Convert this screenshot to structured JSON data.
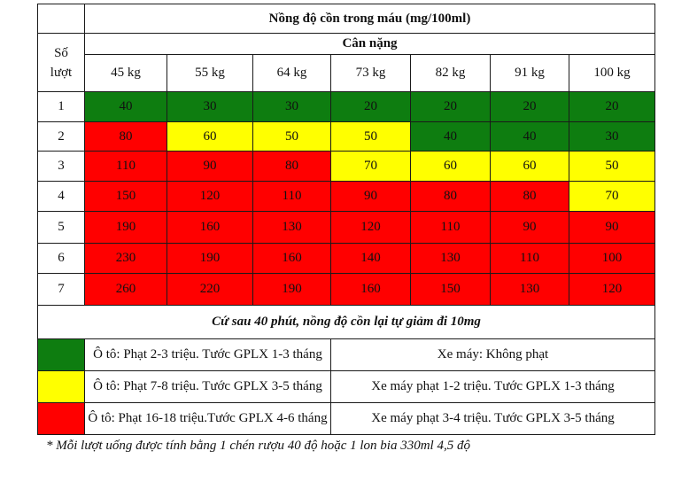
{
  "header": {
    "title": "Nồng độ cồn trong máu (mg/100ml)",
    "rounds_label": "Số lượt",
    "weight_label": "Cân nặng"
  },
  "weights": [
    "45 kg",
    "55 kg",
    "64 kg",
    "73 kg",
    "82 kg",
    "91 kg",
    "100 kg"
  ],
  "rows": [
    {
      "round": "1",
      "values": [
        "40",
        "30",
        "30",
        "20",
        "20",
        "20",
        "20"
      ],
      "levels": [
        "green",
        "green",
        "green",
        "green",
        "green",
        "green",
        "green"
      ]
    },
    {
      "round": "2",
      "values": [
        "80",
        "60",
        "50",
        "50",
        "40",
        "40",
        "30"
      ],
      "levels": [
        "red",
        "yellow",
        "yellow",
        "yellow",
        "green",
        "green",
        "green"
      ]
    },
    {
      "round": "3",
      "values": [
        "110",
        "90",
        "80",
        "70",
        "60",
        "60",
        "50"
      ],
      "levels": [
        "red",
        "red",
        "red",
        "yellow",
        "yellow",
        "yellow",
        "yellow"
      ]
    },
    {
      "round": "4",
      "values": [
        "150",
        "120",
        "110",
        "90",
        "80",
        "80",
        "70"
      ],
      "levels": [
        "red",
        "red",
        "red",
        "red",
        "red",
        "red",
        "yellow"
      ]
    },
    {
      "round": "5",
      "values": [
        "190",
        "160",
        "130",
        "120",
        "110",
        "90",
        "90"
      ],
      "levels": [
        "red",
        "red",
        "red",
        "red",
        "red",
        "red",
        "red"
      ]
    },
    {
      "round": "6",
      "values": [
        "230",
        "190",
        "160",
        "140",
        "130",
        "110",
        "100"
      ],
      "levels": [
        "red",
        "red",
        "red",
        "red",
        "red",
        "red",
        "red"
      ]
    },
    {
      "round": "7",
      "values": [
        "260",
        "220",
        "190",
        "160",
        "150",
        "130",
        "120"
      ],
      "levels": [
        "red",
        "red",
        "red",
        "red",
        "red",
        "red",
        "red"
      ]
    }
  ],
  "note": "Cứ sau 40 phút, nồng độ cồn lại tự giảm đi 10mg",
  "legend": [
    {
      "color": "green",
      "car": "Ô tô: Phạt 2-3 triệu. Tước GPLX 1-3 tháng",
      "moto": "Xe máy: Không phạt"
    },
    {
      "color": "yellow",
      "car": "Ô tô: Phạt 7-8 triệu. Tước GPLX 3-5 tháng",
      "moto": "Xe máy phạt 1-2 triệu. Tước GPLX 1-3 tháng"
    },
    {
      "color": "red",
      "car": "Ô tô: Phạt 16-18 triệu.Tước GPLX 4-6 tháng",
      "moto": "Xe máy phạt 3-4 triệu. Tước GPLX 3-5 tháng"
    }
  ],
  "colors": {
    "green": "#0e7d10",
    "yellow": "#ffff00",
    "red": "#ff0000"
  },
  "footnote": "* Mỗi lượt uống được tính bằng 1 chén rượu 40 độ hoặc 1 lon bia 330ml 4,5 độ"
}
